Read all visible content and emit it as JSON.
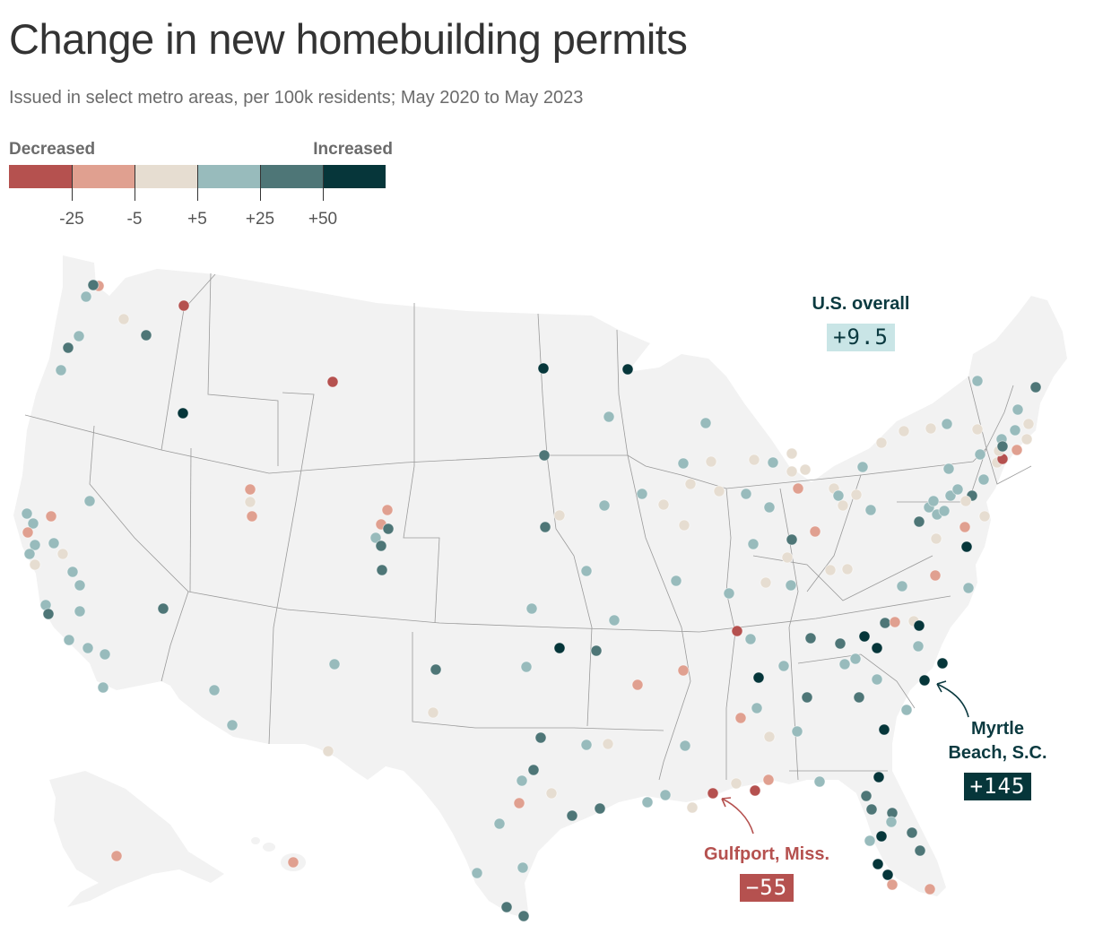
{
  "title": "Change in new homebuilding permits",
  "subtitle": "Issued in select metro areas, per 100k residents; May 2020 to May 2023",
  "legend": {
    "label_left": "Decreased",
    "label_right": "Increased",
    "colors": [
      "#b5514f",
      "#e0a090",
      "#e6ddd1",
      "#98bbbc",
      "#4e7677",
      "#06363a"
    ],
    "thresholds": [
      "-25",
      "-5",
      "+5",
      "+25",
      "+50"
    ]
  },
  "callouts": {
    "us": {
      "label": "U.S. overall",
      "value": "+9.5"
    },
    "myrtle": {
      "label_line1": "Myrtle",
      "label_line2": "Beach, S.C.",
      "value": "+145"
    },
    "gulfport": {
      "label": "Gulfport, Miss.",
      "value": "−55"
    }
  },
  "map": {
    "land_color": "#f2f2f2",
    "border_color": "#9a9a9a",
    "dots": [
      [
        110,
        319,
        1
      ],
      [
        104,
        318,
        4
      ],
      [
        96,
        331,
        3
      ],
      [
        138,
        356,
        2
      ],
      [
        205,
        341,
        0
      ],
      [
        163,
        374,
        4
      ],
      [
        88,
        375,
        3
      ],
      [
        76,
        388,
        4
      ],
      [
        68,
        413,
        3
      ],
      [
        204,
        461,
        5
      ],
      [
        371,
        426,
        0
      ],
      [
        606,
        411,
        5
      ],
      [
        700,
        412,
        5
      ],
      [
        679,
        465,
        3
      ],
      [
        787,
        472,
        3
      ],
      [
        279,
        546,
        1
      ],
      [
        279,
        560,
        2
      ],
      [
        281,
        576,
        1
      ],
      [
        100,
        559,
        3
      ],
      [
        30,
        573,
        3
      ],
      [
        37,
        584,
        3
      ],
      [
        57,
        576,
        1
      ],
      [
        31,
        594,
        1
      ],
      [
        39,
        608,
        3
      ],
      [
        60,
        606,
        3
      ],
      [
        33,
        618,
        3
      ],
      [
        39,
        630,
        2
      ],
      [
        70,
        618,
        2
      ],
      [
        81,
        638,
        3
      ],
      [
        89,
        653,
        3
      ],
      [
        51,
        675,
        3
      ],
      [
        54,
        685,
        4
      ],
      [
        89,
        682,
        3
      ],
      [
        77,
        714,
        3
      ],
      [
        98,
        723,
        3
      ],
      [
        117,
        730,
        3
      ],
      [
        115,
        767,
        3
      ],
      [
        182,
        679,
        4
      ],
      [
        432,
        569,
        1
      ],
      [
        425,
        585,
        1
      ],
      [
        433,
        590,
        4
      ],
      [
        419,
        600,
        3
      ],
      [
        425,
        609,
        4
      ],
      [
        426,
        636,
        4
      ],
      [
        607,
        508,
        4
      ],
      [
        624,
        575,
        2
      ],
      [
        608,
        588,
        4
      ],
      [
        654,
        637,
        3
      ],
      [
        674,
        564,
        3
      ],
      [
        716,
        551,
        3
      ],
      [
        740,
        563,
        2
      ],
      [
        763,
        586,
        2
      ],
      [
        762,
        517,
        3
      ],
      [
        770,
        540,
        2
      ],
      [
        793,
        515,
        2
      ],
      [
        802,
        548,
        2
      ],
      [
        832,
        551,
        3
      ],
      [
        841,
        513,
        2
      ],
      [
        862,
        516,
        3
      ],
      [
        883,
        506,
        2
      ],
      [
        883,
        526,
        2
      ],
      [
        898,
        524,
        2
      ],
      [
        890,
        545,
        1
      ],
      [
        858,
        566,
        3
      ],
      [
        840,
        607,
        3
      ],
      [
        883,
        602,
        4
      ],
      [
        909,
        593,
        1
      ],
      [
        878,
        622,
        2
      ],
      [
        930,
        545,
        2
      ],
      [
        935,
        553,
        3
      ],
      [
        940,
        564,
        2
      ],
      [
        955,
        552,
        2
      ],
      [
        962,
        521,
        3
      ],
      [
        971,
        569,
        3
      ],
      [
        1025,
        582,
        4
      ],
      [
        1036,
        566,
        3
      ],
      [
        1045,
        574,
        3
      ],
      [
        1041,
        559,
        3
      ],
      [
        1053,
        570,
        3
      ],
      [
        1060,
        553,
        3
      ],
      [
        1068,
        546,
        3
      ],
      [
        1084,
        553,
        4
      ],
      [
        1077,
        559,
        2
      ],
      [
        1076,
        588,
        1
      ],
      [
        1044,
        601,
        2
      ],
      [
        1078,
        610,
        5
      ],
      [
        1098,
        576,
        2
      ],
      [
        1097,
        535,
        3
      ],
      [
        1058,
        523,
        3
      ],
      [
        983,
        494,
        2
      ],
      [
        1008,
        481,
        2
      ],
      [
        1038,
        478,
        2
      ],
      [
        1056,
        473,
        3
      ],
      [
        1090,
        479,
        2
      ],
      [
        1093,
        507,
        3
      ],
      [
        1112,
        516,
        2
      ],
      [
        1118,
        512,
        0
      ],
      [
        1114,
        503,
        2
      ],
      [
        1117,
        490,
        3
      ],
      [
        1118,
        498,
        4
      ],
      [
        1132,
        480,
        3
      ],
      [
        1135,
        457,
        3
      ],
      [
        1147,
        473,
        2
      ],
      [
        1145,
        490,
        2
      ],
      [
        1134,
        502,
        1
      ],
      [
        1090,
        425,
        3
      ],
      [
        1155,
        432,
        4
      ],
      [
        1043,
        642,
        1
      ],
      [
        1006,
        654,
        3
      ],
      [
        1080,
        656,
        3
      ],
      [
        926,
        636,
        2
      ],
      [
        945,
        635,
        2
      ],
      [
        854,
        650,
        2
      ],
      [
        882,
        653,
        3
      ],
      [
        813,
        662,
        3
      ],
      [
        754,
        648,
        3
      ],
      [
        685,
        692,
        3
      ],
      [
        593,
        679,
        3
      ],
      [
        624,
        723,
        5
      ],
      [
        665,
        726,
        4
      ],
      [
        587,
        744,
        3
      ],
      [
        486,
        747,
        4
      ],
      [
        373,
        741,
        3
      ],
      [
        239,
        770,
        3
      ],
      [
        259,
        809,
        3
      ],
      [
        366,
        838,
        2
      ],
      [
        483,
        795,
        2
      ],
      [
        822,
        704,
        0
      ],
      [
        837,
        713,
        3
      ],
      [
        904,
        712,
        4
      ],
      [
        937,
        718,
        4
      ],
      [
        964,
        710,
        5
      ],
      [
        978,
        723,
        5
      ],
      [
        987,
        695,
        4
      ],
      [
        998,
        694,
        1
      ],
      [
        1019,
        693,
        2
      ],
      [
        1025,
        698,
        5
      ],
      [
        1024,
        721,
        3
      ],
      [
        954,
        735,
        3
      ],
      [
        942,
        741,
        3
      ],
      [
        978,
        758,
        3
      ],
      [
        1051,
        740,
        5
      ],
      [
        1031,
        759,
        5
      ],
      [
        1011,
        792,
        3
      ],
      [
        986,
        814,
        5
      ],
      [
        874,
        743,
        3
      ],
      [
        846,
        756,
        5
      ],
      [
        900,
        778,
        4
      ],
      [
        958,
        778,
        4
      ],
      [
        844,
        790,
        3
      ],
      [
        826,
        801,
        1
      ],
      [
        858,
        822,
        2
      ],
      [
        889,
        816,
        3
      ],
      [
        762,
        748,
        1
      ],
      [
        711,
        764,
        1
      ],
      [
        764,
        832,
        3
      ],
      [
        678,
        830,
        2
      ],
      [
        654,
        831,
        3
      ],
      [
        603,
        823,
        4
      ],
      [
        595,
        859,
        4
      ],
      [
        582,
        871,
        3
      ],
      [
        579,
        896,
        1
      ],
      [
        615,
        885,
        2
      ],
      [
        557,
        919,
        3
      ],
      [
        638,
        910,
        4
      ],
      [
        669,
        902,
        4
      ],
      [
        583,
        968,
        3
      ],
      [
        532,
        974,
        3
      ],
      [
        565,
        1012,
        4
      ],
      [
        584,
        1022,
        4
      ],
      [
        722,
        895,
        3
      ],
      [
        742,
        887,
        3
      ],
      [
        772,
        901,
        2
      ],
      [
        795,
        885,
        0
      ],
      [
        821,
        874,
        2
      ],
      [
        842,
        882,
        0
      ],
      [
        857,
        870,
        1
      ],
      [
        914,
        872,
        3
      ],
      [
        980,
        867,
        5
      ],
      [
        966,
        888,
        4
      ],
      [
        972,
        903,
        4
      ],
      [
        995,
        907,
        4
      ],
      [
        994,
        917,
        3
      ],
      [
        983,
        933,
        5
      ],
      [
        970,
        938,
        3
      ],
      [
        1017,
        929,
        4
      ],
      [
        1026,
        949,
        4
      ],
      [
        979,
        964,
        5
      ],
      [
        990,
        976,
        5
      ],
      [
        995,
        987,
        1
      ],
      [
        1037,
        992,
        1
      ],
      [
        130,
        955,
        1
      ],
      [
        327,
        962,
        1
      ]
    ]
  }
}
